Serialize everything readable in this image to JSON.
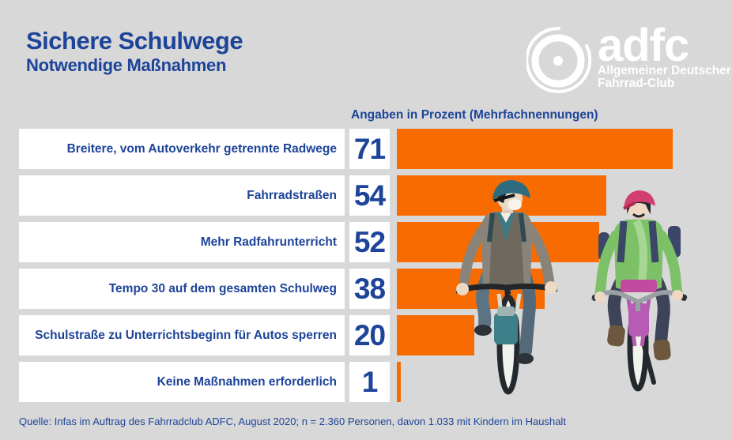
{
  "header": {
    "title": "Sichere Schulwege",
    "subtitle": "Notwendige Maßnahmen"
  },
  "logo": {
    "brand": "adfc",
    "line1": "Allgemeiner Deutscher",
    "line2": "Fahrrad-Club",
    "wheel_icon": "bicycle-wheel-icon"
  },
  "chart_data": {
    "type": "bar",
    "orientation": "horizontal",
    "title": "Sichere Schulwege – Notwendige Maßnahmen",
    "header_note": "Angaben in Prozent (Mehrfachnennungen)",
    "unit": "percent",
    "categories": [
      "Breitere, vom Autoverkehr getrennte Radwege",
      "Fahrradstraßen",
      "Mehr Radfahrunterricht",
      "Tempo 30 auf dem gesamten Schulweg",
      "Schulstraße zu Unterrichtsbeginn für Autos sperren",
      "Keine Maßnahmen erforderlich"
    ],
    "values": [
      71,
      54,
      52,
      38,
      20,
      1
    ],
    "xlim": [
      0,
      100
    ],
    "grid": false,
    "legend": false,
    "bar_color": "#f86b00",
    "value_label_position": "left-of-bar"
  },
  "footer": {
    "source": "Quelle: Infas im Auftrag des Fahrradclub ADFC, August 2020; n = 2.360 Personen, davon 1.033 mit Kindern im Haushalt"
  },
  "colors": {
    "background": "#d8d8d8",
    "brand_blue": "#1d4499",
    "accent_orange": "#f86b00",
    "box_white": "#ffffff",
    "logo_white": "#ffffff"
  },
  "illustrations": {
    "left": "child-cyclist-teal-helmet",
    "right": "child-cyclist-pink-helmet"
  }
}
